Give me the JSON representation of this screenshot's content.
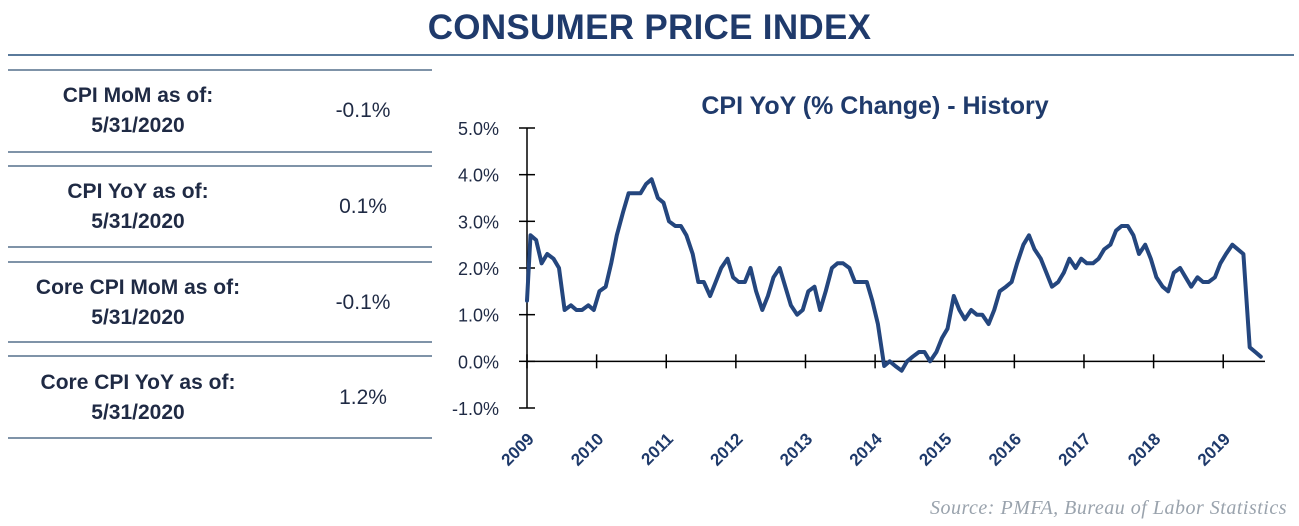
{
  "header": {
    "title": "CONSUMER PRICE INDEX"
  },
  "stats": [
    {
      "label_line1": "CPI MoM as of:",
      "label_line2": "5/31/2020",
      "value": "-0.1%"
    },
    {
      "label_line1": "CPI YoY as of:",
      "label_line2": "5/31/2020",
      "value": "0.1%"
    },
    {
      "label_line1": "Core CPI MoM as of:",
      "label_line2": "5/31/2020",
      "value": "-0.1%"
    },
    {
      "label_line1": "Core CPI YoY as of:",
      "label_line2": "5/31/2020",
      "value": "1.2%"
    }
  ],
  "source": "Source:  PMFA,  Bureau of Labor Statistics",
  "colors": {
    "title": "#1f3a6b",
    "line": "#24467e",
    "rule": "#7f93a8"
  },
  "chart_data": {
    "type": "line",
    "title": "CPI YoY (% Change) - History",
    "xlabel": "",
    "ylabel": "",
    "ylim": [
      -1.0,
      5.0
    ],
    "yticks": [
      "5.0%",
      "4.0%",
      "3.0%",
      "2.0%",
      "1.0%",
      "0.0%",
      "-1.0%"
    ],
    "ytick_values": [
      5,
      4,
      3,
      2,
      1,
      0,
      -1
    ],
    "xlim": [
      2009,
      2019.6
    ],
    "xticks": [
      "2009",
      "2010",
      "2011",
      "2012",
      "2013",
      "2014",
      "2015",
      "2016",
      "2017",
      "2018",
      "2019"
    ],
    "grid": false,
    "series": [
      {
        "x": [
          2009.0,
          2009.05,
          2009.13,
          2009.21,
          2009.29,
          2009.38,
          2009.46,
          2009.54,
          2009.63,
          2009.71,
          2009.79,
          2009.88,
          2009.96,
          2010.04,
          2010.13,
          2010.21,
          2010.29,
          2010.38,
          2010.46,
          2010.54,
          2010.63,
          2010.71,
          2010.79,
          2010.88,
          2010.96,
          2011.04,
          2011.13,
          2011.21,
          2011.29,
          2011.38,
          2011.46,
          2011.54,
          2011.63,
          2011.71,
          2011.79,
          2011.88,
          2011.96,
          2012.04,
          2012.13,
          2012.21,
          2012.29,
          2012.38,
          2012.46,
          2012.54,
          2012.63,
          2012.71,
          2012.79,
          2012.88,
          2012.96,
          2013.04,
          2013.13,
          2013.21,
          2013.29,
          2013.38,
          2013.46,
          2013.54,
          2013.63,
          2013.71,
          2013.79,
          2013.88,
          2013.96,
          2014.04,
          2014.13,
          2014.21,
          2014.29,
          2014.38,
          2014.46,
          2014.54,
          2014.63,
          2014.71,
          2014.79,
          2014.88,
          2014.96,
          2015.04,
          2015.13,
          2015.21,
          2015.29,
          2015.38,
          2015.46,
          2015.54,
          2015.63,
          2015.71,
          2015.79,
          2015.88,
          2015.96,
          2016.04,
          2016.13,
          2016.21,
          2016.29,
          2016.38,
          2016.46,
          2016.54,
          2016.63,
          2016.71,
          2016.79,
          2016.88,
          2016.96,
          2017.04,
          2017.13,
          2017.21,
          2017.29,
          2017.38,
          2017.46,
          2017.54,
          2017.63,
          2017.71,
          2017.79,
          2017.88,
          2017.96,
          2018.04,
          2018.13,
          2018.21,
          2018.29,
          2018.38,
          2018.46,
          2018.54,
          2018.63,
          2018.71,
          2018.79,
          2018.88,
          2018.96,
          2019.04,
          2019.13,
          2019.21,
          2019.29,
          2019.38,
          2019.46,
          2019.54
        ],
        "values": [
          1.3,
          2.7,
          2.6,
          2.1,
          2.3,
          2.2,
          2.0,
          1.1,
          1.2,
          1.1,
          1.1,
          1.2,
          1.1,
          1.5,
          1.6,
          2.1,
          2.7,
          3.2,
          3.6,
          3.6,
          3.6,
          3.8,
          3.9,
          3.5,
          3.4,
          3.0,
          2.9,
          2.9,
          2.7,
          2.3,
          1.7,
          1.7,
          1.4,
          1.7,
          2.0,
          2.2,
          1.8,
          1.7,
          1.7,
          2.0,
          1.5,
          1.1,
          1.4,
          1.8,
          2.0,
          1.6,
          1.2,
          1.0,
          1.1,
          1.5,
          1.6,
          1.1,
          1.5,
          2.0,
          2.1,
          2.1,
          2.0,
          1.7,
          1.7,
          1.7,
          1.3,
          0.8,
          -0.1,
          0.0,
          -0.1,
          -0.2,
          0.0,
          0.1,
          0.2,
          0.2,
          0.0,
          0.2,
          0.5,
          0.7,
          1.4,
          1.1,
          0.9,
          1.1,
          1.0,
          1.0,
          0.8,
          1.1,
          1.5,
          1.6,
          1.7,
          2.1,
          2.5,
          2.7,
          2.4,
          2.2,
          1.9,
          1.6,
          1.7,
          1.9,
          2.2,
          2.0,
          2.2,
          2.1,
          2.1,
          2.2,
          2.4,
          2.5,
          2.8,
          2.9,
          2.9,
          2.7,
          2.3,
          2.5,
          2.2,
          1.8,
          1.6,
          1.5,
          1.9,
          2.0,
          1.8,
          1.6,
          1.8,
          1.7,
          1.7,
          1.8,
          2.1,
          2.3,
          2.5,
          2.4,
          2.3,
          0.3,
          0.2,
          0.1
        ]
      }
    ]
  }
}
